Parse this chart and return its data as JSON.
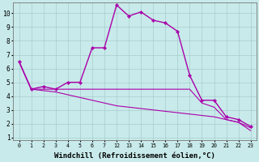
{
  "background_color": "#c8eaea",
  "line_color": "#aa00aa",
  "grid_color": "#a8cccc",
  "xlabel": "Windchill (Refroidissement éolien,°C)",
  "xlabel_fontsize": 6.5,
  "xlim": [
    -0.5,
    19.5
  ],
  "ylim": [
    0.8,
    10.8
  ],
  "yticks": [
    1,
    2,
    3,
    4,
    5,
    6,
    7,
    8,
    9,
    10
  ],
  "tick_positions": [
    0,
    1,
    2,
    3,
    4,
    5,
    6,
    7,
    8,
    9,
    10,
    11,
    12,
    13,
    14,
    15,
    16,
    17,
    18,
    19
  ],
  "tick_labels": [
    "0",
    "1",
    "2",
    "3",
    "4",
    "5",
    "6",
    "7",
    "12",
    "13",
    "14",
    "15",
    "16",
    "17",
    "18",
    "19",
    "20",
    "21",
    "22",
    "23"
  ],
  "s1_x": [
    0,
    1,
    2,
    3,
    4,
    5,
    6,
    7,
    8,
    9,
    10,
    11,
    12,
    13,
    14,
    15,
    16,
    17,
    18,
    19
  ],
  "s1_y": [
    6.5,
    4.5,
    4.7,
    4.5,
    5.0,
    5.0,
    7.5,
    7.5,
    10.6,
    9.8,
    10.1,
    9.5,
    9.3,
    8.7,
    5.5,
    3.7,
    3.7,
    2.5,
    2.3,
    1.8
  ],
  "s2_x": [
    0,
    1,
    2,
    3,
    4,
    5,
    6,
    7,
    8,
    9,
    10,
    11,
    12,
    13,
    14,
    15,
    16,
    17,
    18,
    19
  ],
  "s2_y": [
    6.5,
    4.5,
    4.5,
    4.5,
    4.5,
    4.5,
    4.5,
    4.5,
    4.5,
    4.5,
    4.5,
    4.5,
    4.5,
    4.5,
    4.5,
    3.5,
    3.2,
    2.3,
    2.1,
    1.7
  ],
  "s3_x": [
    0,
    1,
    2,
    3,
    4,
    5,
    6,
    7,
    8,
    9,
    10,
    11,
    12,
    13,
    14,
    15,
    16,
    17,
    18,
    19
  ],
  "s3_y": [
    6.5,
    4.5,
    4.4,
    4.3,
    4.1,
    3.9,
    3.7,
    3.5,
    3.3,
    3.2,
    3.1,
    3.0,
    2.9,
    2.8,
    2.7,
    2.6,
    2.5,
    2.3,
    2.1,
    1.5
  ],
  "markersize": 2.2,
  "linewidth1": 1.0,
  "linewidth2": 0.8,
  "linewidth3": 0.8
}
